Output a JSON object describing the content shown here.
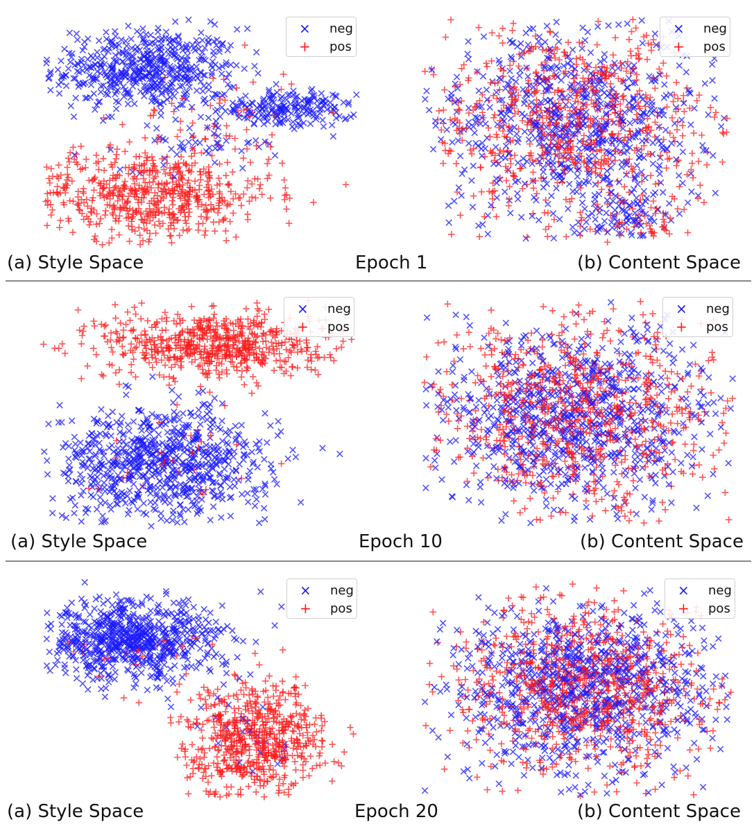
{
  "colors": {
    "neg": "#1a1aff",
    "pos": "#ff1a1a"
  },
  "legend": {
    "neg_label": "neg",
    "pos_label": "pos"
  },
  "chart_data": [
    {
      "type": "scatter",
      "epoch_label": "Epoch 1",
      "caption": "(a) Style Space",
      "series": [
        {
          "name": "neg",
          "marker": "x",
          "clusters": [
            {
              "cx": -0.35,
              "cy": 0.55,
              "sx": 0.3,
              "sy": 0.18,
              "n": 520
            },
            {
              "cx": 0.55,
              "cy": 0.2,
              "sx": 0.22,
              "sy": 0.08,
              "n": 200
            },
            {
              "cx": 0.0,
              "cy": -0.1,
              "sx": 0.25,
              "sy": 0.12,
              "n": 50
            }
          ]
        },
        {
          "name": "pos",
          "marker": "+",
          "clusters": [
            {
              "cx": -0.35,
              "cy": -0.55,
              "sx": 0.4,
              "sy": 0.2,
              "n": 600
            },
            {
              "cx": 0.1,
              "cy": 0.1,
              "sx": 0.3,
              "sy": 0.25,
              "n": 60
            }
          ]
        }
      ]
    },
    {
      "type": "scatter",
      "epoch_label": "Epoch 1",
      "caption": "(b) Content Space",
      "series": [
        {
          "name": "neg",
          "marker": "x",
          "clusters": [
            {
              "cx": 0.0,
              "cy": 0.05,
              "sx": 0.45,
              "sy": 0.45,
              "n": 700
            },
            {
              "cx": 0.35,
              "cy": -0.75,
              "sx": 0.12,
              "sy": 0.1,
              "n": 60
            }
          ]
        },
        {
          "name": "pos",
          "marker": "+",
          "clusters": [
            {
              "cx": -0.05,
              "cy": 0.1,
              "sx": 0.45,
              "sy": 0.45,
              "n": 700
            },
            {
              "cx": 0.45,
              "cy": -0.8,
              "sx": 0.12,
              "sy": 0.1,
              "n": 40
            }
          ]
        }
      ]
    },
    {
      "type": "scatter",
      "epoch_label": "Epoch 10",
      "caption": "(a) Style Space",
      "series": [
        {
          "name": "neg",
          "marker": "x",
          "clusters": [
            {
              "cx": -0.25,
              "cy": -0.45,
              "sx": 0.35,
              "sy": 0.25,
              "n": 750
            }
          ]
        },
        {
          "name": "pos",
          "marker": "+",
          "clusters": [
            {
              "cx": 0.1,
              "cy": 0.6,
              "sx": 0.35,
              "sy": 0.15,
              "n": 650
            },
            {
              "cx": -0.2,
              "cy": -0.4,
              "sx": 0.3,
              "sy": 0.2,
              "n": 30
            }
          ]
        }
      ]
    },
    {
      "type": "scatter",
      "epoch_label": "Epoch 10",
      "caption": "(b) Content Space",
      "series": [
        {
          "name": "neg",
          "marker": "x",
          "clusters": [
            {
              "cx": 0.0,
              "cy": 0.0,
              "sx": 0.45,
              "sy": 0.42,
              "n": 800
            }
          ]
        },
        {
          "name": "pos",
          "marker": "+",
          "clusters": [
            {
              "cx": 0.0,
              "cy": 0.0,
              "sx": 0.45,
              "sy": 0.42,
              "n": 800
            }
          ]
        }
      ]
    },
    {
      "type": "scatter",
      "epoch_label": "Epoch 20",
      "caption": "(a) Style Space",
      "series": [
        {
          "name": "neg",
          "marker": "x",
          "clusters": [
            {
              "cx": -0.45,
              "cy": 0.45,
              "sx": 0.3,
              "sy": 0.18,
              "n": 700
            },
            {
              "cx": 0.25,
              "cy": -0.4,
              "sx": 0.2,
              "sy": 0.2,
              "n": 25
            }
          ]
        },
        {
          "name": "pos",
          "marker": "+",
          "clusters": [
            {
              "cx": 0.35,
              "cy": -0.45,
              "sx": 0.22,
              "sy": 0.25,
              "n": 650
            },
            {
              "cx": -0.4,
              "cy": 0.35,
              "sx": 0.25,
              "sy": 0.15,
              "n": 25
            }
          ]
        }
      ]
    },
    {
      "type": "scatter",
      "epoch_label": "Epoch 20",
      "caption": "(b) Content Space",
      "series": [
        {
          "name": "neg",
          "marker": "x",
          "clusters": [
            {
              "cx": 0.0,
              "cy": 0.0,
              "sx": 0.42,
              "sy": 0.4,
              "n": 850
            }
          ]
        },
        {
          "name": "pos",
          "marker": "+",
          "clusters": [
            {
              "cx": 0.0,
              "cy": 0.0,
              "sx": 0.42,
              "sy": 0.4,
              "n": 850
            }
          ]
        }
      ]
    }
  ],
  "rows": [
    {
      "left_caption": "(a) Style Space",
      "epoch": "Epoch 1",
      "right_caption": "(b) Content Space"
    },
    {
      "left_caption": "(a) Style Space",
      "epoch": "Epoch 10",
      "right_caption": "(b) Content Space"
    },
    {
      "left_caption": "(a) Style Space",
      "epoch": "Epoch 20",
      "right_caption": "(b) Content Space"
    }
  ]
}
